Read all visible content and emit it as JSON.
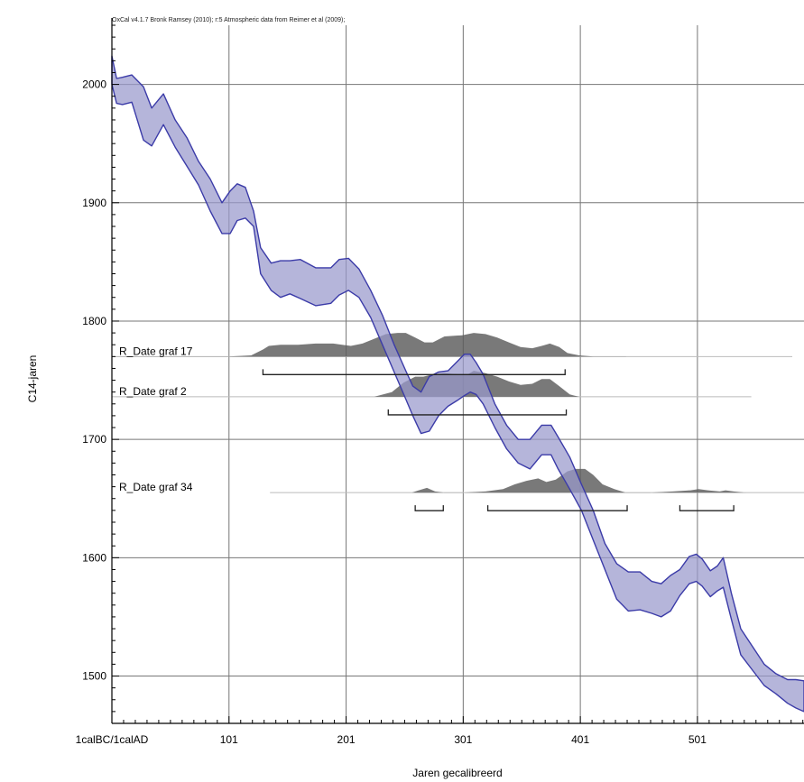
{
  "credit": "OxCal v4.1.7 Bronk Ramsey (2010); r:5 Atmospheric data from Reimer et al (2009);",
  "chart_data": {
    "type": "area",
    "xlabel": "Jaren gecalibreerd",
    "ylabel": "C14-jaren",
    "xlim": [
      1,
      592
    ],
    "ylim": [
      1460,
      2050
    ],
    "x_ticks": [
      {
        "value": 1,
        "label": "1calBC/1calAD"
      },
      {
        "value": 101,
        "label": "101"
      },
      {
        "value": 201,
        "label": "201"
      },
      {
        "value": 301,
        "label": "301"
      },
      {
        "value": 401,
        "label": "401"
      },
      {
        "value": 501,
        "label": "501"
      }
    ],
    "y_ticks": [
      {
        "value": 1500,
        "label": "1500"
      },
      {
        "value": 1600,
        "label": "1600"
      },
      {
        "value": 1700,
        "label": "1700"
      },
      {
        "value": 1800,
        "label": "1800"
      },
      {
        "value": 1900,
        "label": "1900"
      },
      {
        "value": 2000,
        "label": "2000"
      }
    ],
    "grid": true,
    "calibration_curve": {
      "color": "#9999cc",
      "stroke": "#3b3ba8",
      "x": [
        1,
        5,
        10,
        18,
        28,
        35,
        45,
        55,
        65,
        75,
        85,
        95,
        102,
        108,
        115,
        122,
        128,
        137,
        145,
        153,
        162,
        175,
        188,
        195,
        203,
        212,
        222,
        232,
        242,
        252,
        258,
        265,
        272,
        280,
        288,
        296,
        302,
        307,
        312,
        318,
        328,
        338,
        348,
        358,
        368,
        376,
        382,
        392,
        402,
        412,
        422,
        432,
        442,
        452,
        462,
        470,
        478,
        486,
        494,
        500,
        505,
        512,
        518,
        523,
        530,
        538,
        548,
        558,
        568,
        578,
        585,
        592
      ],
      "upper": [
        2024,
        2005,
        2006,
        2008,
        1998,
        1980,
        1992,
        1970,
        1955,
        1935,
        1920,
        1900,
        1910,
        1916,
        1913,
        1893,
        1862,
        1849,
        1851,
        1851,
        1852,
        1845,
        1845,
        1852,
        1853,
        1844,
        1826,
        1805,
        1780,
        1758,
        1745,
        1740,
        1753,
        1757,
        1758,
        1766,
        1772,
        1772,
        1765,
        1755,
        1730,
        1712,
        1700,
        1700,
        1712,
        1712,
        1702,
        1685,
        1662,
        1640,
        1612,
        1595,
        1588,
        1588,
        1580,
        1578,
        1585,
        1590,
        1601,
        1603,
        1599,
        1589,
        1593,
        1600,
        1570,
        1540,
        1525,
        1510,
        1502,
        1497,
        1497,
        1496
      ],
      "lower": [
        2000,
        1984,
        1983,
        1985,
        1953,
        1948,
        1966,
        1947,
        1931,
        1915,
        1893,
        1874,
        1874,
        1885,
        1887,
        1880,
        1840,
        1826,
        1820,
        1823,
        1819,
        1813,
        1815,
        1822,
        1826,
        1820,
        1803,
        1780,
        1757,
        1734,
        1720,
        1705,
        1707,
        1720,
        1728,
        1733,
        1737,
        1740,
        1738,
        1730,
        1710,
        1692,
        1680,
        1675,
        1687,
        1687,
        1675,
        1658,
        1640,
        1615,
        1590,
        1565,
        1555,
        1556,
        1553,
        1550,
        1555,
        1568,
        1578,
        1580,
        1576,
        1567,
        1572,
        1575,
        1548,
        1518,
        1505,
        1492,
        1485,
        1477,
        1473,
        1470
      ]
    },
    "samples": [
      {
        "label": "R_Date graf 17",
        "baseline": 1770,
        "line_x": [
          1,
          582
        ],
        "density_x": [
          1,
          60,
          100,
          120,
          130,
          135,
          145,
          160,
          175,
          190,
          205,
          215,
          225,
          235,
          245,
          252,
          260,
          268,
          275,
          285,
          300,
          310,
          320,
          330,
          340,
          350,
          360,
          368,
          375,
          383,
          390,
          400,
          412,
          425,
          440
        ],
        "density_y": [
          1770,
          1770,
          1770,
          1771,
          1776,
          1779,
          1780,
          1780,
          1781,
          1781,
          1779,
          1781,
          1785,
          1789,
          1790,
          1790,
          1786,
          1782,
          1782,
          1787,
          1788,
          1790,
          1789,
          1786,
          1782,
          1778,
          1777,
          1779,
          1781,
          1778,
          1773,
          1771,
          1770,
          1770,
          1770
        ],
        "ranges": [
          [
            130,
            388
          ]
        ]
      },
      {
        "label": "R_Date graf 2",
        "baseline": 1736,
        "line_x": [
          1,
          547
        ],
        "density_x": [
          200,
          225,
          240,
          250,
          260,
          267,
          275,
          285,
          297,
          305,
          310,
          320,
          330,
          340,
          350,
          360,
          368,
          375,
          383,
          392,
          400
        ],
        "density_y": [
          1736,
          1736,
          1740,
          1748,
          1753,
          1753,
          1755,
          1756,
          1755,
          1755,
          1758,
          1756,
          1753,
          1749,
          1746,
          1747,
          1751,
          1751,
          1745,
          1738,
          1736
        ],
        "ranges": [
          [
            237,
            389
          ]
        ]
      },
      {
        "label": "R_Date graf 34",
        "baseline": 1655,
        "line_x": [
          136,
          592
        ],
        "density_x": [
          257,
          263,
          270,
          277,
          285,
          300,
          320,
          335,
          345,
          355,
          365,
          372,
          380,
          390,
          397,
          405,
          412,
          420,
          430,
          440,
          460,
          480,
          495,
          502,
          510,
          520,
          525,
          532,
          542
        ],
        "density_y": [
          1655,
          1657,
          1659,
          1656,
          1655,
          1655,
          1656,
          1658,
          1662,
          1665,
          1667,
          1664,
          1666,
          1673,
          1675,
          1675,
          1670,
          1662,
          1658,
          1655,
          1655,
          1656,
          1657,
          1658,
          1657,
          1656,
          1657,
          1656,
          1655
        ],
        "ranges": [
          [
            260,
            284
          ],
          [
            322,
            441
          ],
          [
            486,
            532
          ]
        ]
      }
    ]
  }
}
